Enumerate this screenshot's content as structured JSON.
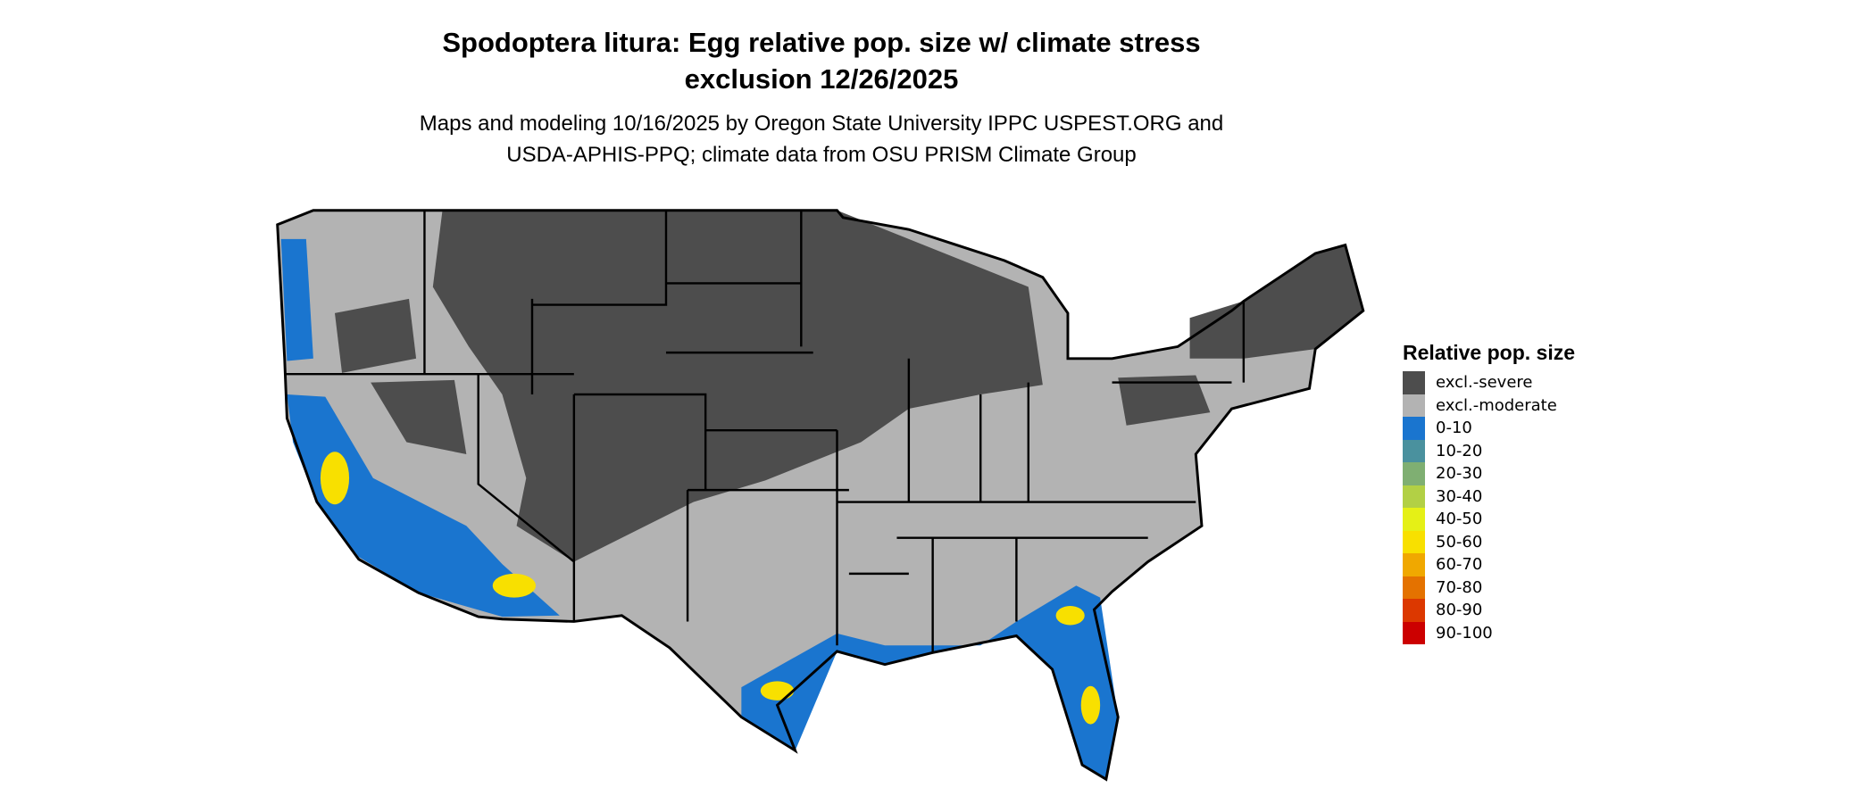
{
  "title": {
    "line1": "Spodoptera litura: Egg relative pop. size w/ climate stress",
    "line2": "exclusion 12/26/2025"
  },
  "subtitle": {
    "line1": "Maps and modeling 10/16/2025 by Oregon State University IPPC USPEST.ORG and",
    "line2": "USDA-APHIS-PPQ; climate data from OSU PRISM Climate Group"
  },
  "map": {
    "region": "Contiguous United States",
    "colors": {
      "background_land": "#b3b3b3",
      "severe": "#4d4d4d",
      "low": "#1874cd",
      "mid": "#f0e000",
      "border": "#000000"
    }
  },
  "legend": {
    "title": "Relative pop. size",
    "items": [
      {
        "label": "excl.-severe",
        "color": "#4d4d4d"
      },
      {
        "label": "excl.-moderate",
        "color": "#b3b3b3"
      },
      {
        "label": "0-10",
        "color": "#1a75cf"
      },
      {
        "label": "10-20",
        "color": "#4a919e"
      },
      {
        "label": "20-30",
        "color": "#7faf72"
      },
      {
        "label": "30-40",
        "color": "#b2d045"
      },
      {
        "label": "40-50",
        "color": "#e5f016"
      },
      {
        "label": "50-60",
        "color": "#f8e000"
      },
      {
        "label": "60-70",
        "color": "#f0a800"
      },
      {
        "label": "70-80",
        "color": "#e47200"
      },
      {
        "label": "80-90",
        "color": "#dc3800"
      },
      {
        "label": "90-100",
        "color": "#cc0000"
      }
    ]
  }
}
